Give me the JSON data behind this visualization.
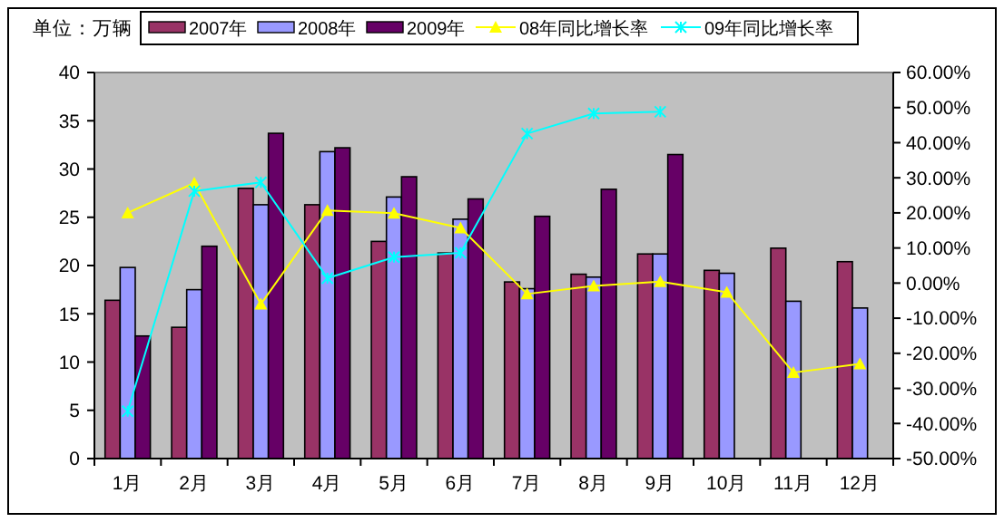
{
  "chart_data": {
    "type": "bar",
    "ylabel": "单位：万辆",
    "categories": [
      "1月",
      "2月",
      "3月",
      "4月",
      "5月",
      "6月",
      "7月",
      "8月",
      "9月",
      "10月",
      "11月",
      "12月"
    ],
    "series": [
      {
        "name": "2007年",
        "color": "#993366",
        "values": [
          16.4,
          13.6,
          28,
          26.3,
          22.5,
          21.3,
          18.3,
          19.1,
          21.2,
          19.5,
          21.8,
          20.4
        ]
      },
      {
        "name": "2008年",
        "color": "#9999ff",
        "values": [
          19.8,
          17.5,
          26.3,
          31.8,
          27.1,
          24.8,
          17.6,
          18.8,
          21.2,
          19.2,
          16.3,
          15.6
        ]
      },
      {
        "name": "2009年",
        "color": "#660066",
        "values": [
          12.7,
          22,
          33.7,
          32.2,
          29.2,
          26.9,
          25.1,
          27.9,
          31.5,
          null,
          null,
          null
        ]
      },
      {
        "name": "08年同比增长率",
        "type": "line",
        "axis": "y2",
        "marker": "triangle",
        "color": "#ffff00",
        "values": [
          20,
          28.5,
          -6,
          20.7,
          19.9,
          15.7,
          -3.1,
          -0.8,
          0.4,
          -2.6,
          -25.5,
          -23
        ]
      },
      {
        "name": "09年同比增长率",
        "type": "line",
        "axis": "y2",
        "marker": "cross",
        "color": "#00ffff",
        "values": [
          -36.5,
          26.2,
          28.7,
          1.4,
          7.4,
          8.6,
          42.6,
          48.3,
          48.8,
          null,
          null,
          null
        ]
      }
    ],
    "ylim": [
      0,
      40
    ],
    "yticks": [
      0,
      5,
      10,
      15,
      20,
      25,
      30,
      35,
      40
    ],
    "y2lim": [
      -50,
      60
    ],
    "y2ticks": [
      {
        "value": 60,
        "label": "60.00%"
      },
      {
        "value": 50,
        "label": "50.00%"
      },
      {
        "value": 40,
        "label": "40.00%"
      },
      {
        "value": 30,
        "label": "30.00%"
      },
      {
        "value": 20,
        "label": "20.00%"
      },
      {
        "value": 10,
        "label": "10.00%"
      },
      {
        "value": 0,
        "label": "0.00%"
      },
      {
        "value": -10,
        "label": "-10.00%"
      },
      {
        "value": -20,
        "label": "-20.00%"
      },
      {
        "value": -30,
        "label": "-30.00%"
      },
      {
        "value": -40,
        "label": "-40.00%"
      },
      {
        "value": -50,
        "label": "-50.00%"
      }
    ],
    "grid": false,
    "legend": "top"
  }
}
